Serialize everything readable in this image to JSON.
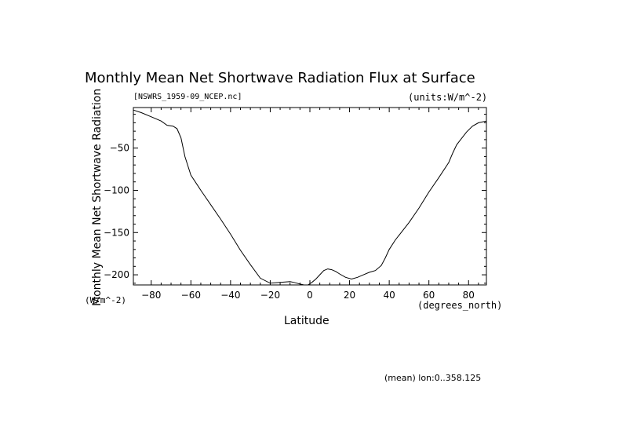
{
  "chart_data": {
    "type": "line",
    "title": "Monthly Mean Net Shortwave Radiation Flux at Surface",
    "file_label": "[NSWRS_1959-09_NCEP.nc]",
    "units_label": "(units:W/m^-2)",
    "ylabel": "Monthly Mean Net Shortwave Radiation",
    "yunits": "(W/m^-2)",
    "xlabel": "Latitude",
    "xunits": "(degrees_north)",
    "footnote": "(mean) lon:0..358.125",
    "xlim": [
      -89,
      89
    ],
    "ylim": [
      -212,
      -2
    ],
    "x_ticks": [
      -80,
      -60,
      -40,
      -20,
      0,
      20,
      40,
      60,
      80
    ],
    "y_ticks": [
      -50,
      -100,
      -150,
      -200
    ],
    "series": [
      {
        "x": [
          -89,
          -85,
          -80,
          -75,
          -72,
          -69,
          -67,
          -65,
          -63,
          -60,
          -55,
          -50,
          -45,
          -40,
          -35,
          -30,
          -25,
          -20,
          -15,
          -10,
          -8,
          -5,
          -3,
          -1,
          1,
          3,
          5,
          7,
          9,
          11,
          13,
          15,
          18,
          21,
          24,
          27,
          30,
          33,
          36,
          38,
          40,
          43,
          46,
          50,
          55,
          60,
          65,
          70,
          72,
          74,
          76,
          79,
          82,
          85,
          89
        ],
        "y": [
          -5,
          -8,
          -13,
          -18,
          -23,
          -24,
          -27,
          -38,
          -60,
          -82,
          -100,
          -117,
          -134,
          -152,
          -171,
          -188,
          -204,
          -210,
          -209,
          -208,
          -209,
          -211,
          -212,
          -212,
          -209,
          -205,
          -200,
          -195,
          -193,
          -194,
          -196,
          -199,
          -203,
          -205,
          -203,
          -200,
          -197,
          -195,
          -189,
          -180,
          -170,
          -159,
          -150,
          -138,
          -121,
          -102,
          -85,
          -67,
          -56,
          -46,
          -40,
          -31,
          -24,
          -20,
          -18
        ]
      }
    ]
  }
}
